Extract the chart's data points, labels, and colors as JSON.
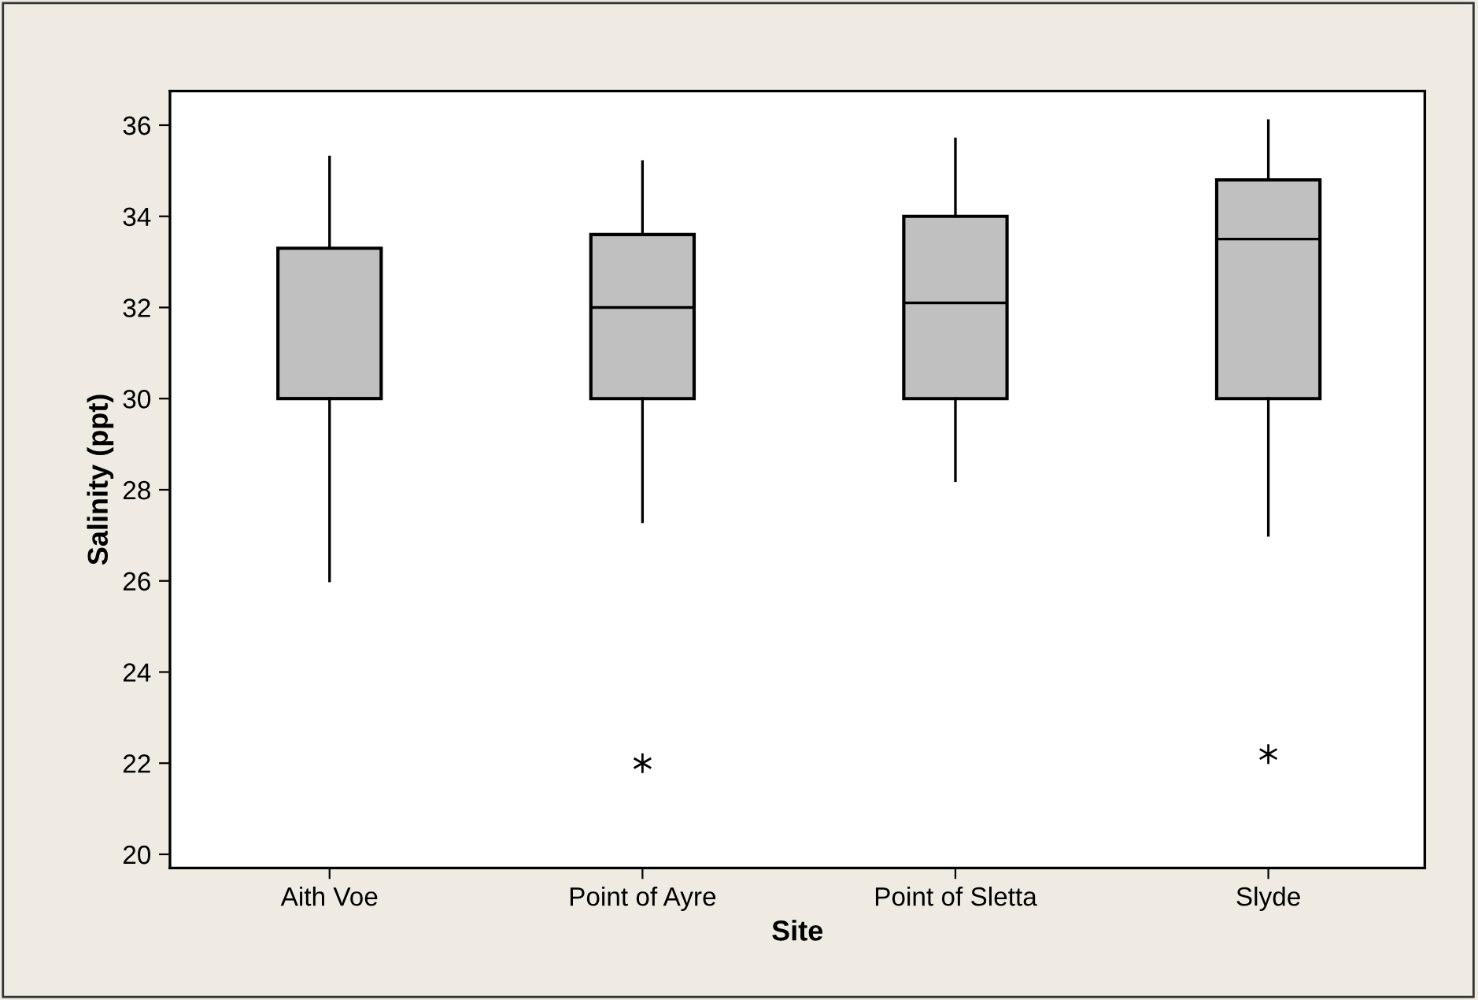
{
  "chart_data": {
    "type": "box",
    "xlabel": "Site",
    "ylabel": "Salinity (ppt)",
    "categories": [
      "Aith Voe",
      "Point of Ayre",
      "Point of Sletta",
      "Slyde"
    ],
    "boxes": [
      {
        "low": 26.0,
        "q1": 30.0,
        "median": 30.0,
        "q3": 33.3,
        "high": 35.3
      },
      {
        "low": 27.3,
        "q1": 30.0,
        "median": 32.0,
        "q3": 33.6,
        "high": 35.2,
        "outliers": [
          22.0
        ]
      },
      {
        "low": 28.2,
        "q1": 30.0,
        "median": 32.1,
        "q3": 34.0,
        "high": 35.7
      },
      {
        "low": 27.0,
        "q1": 30.0,
        "median": 33.5,
        "q3": 34.8,
        "high": 36.1,
        "outliers": [
          22.2
        ]
      }
    ],
    "color": "#c0c0c0",
    "ylim": [
      19.7,
      36.75
    ],
    "yticks": [
      20,
      22,
      24,
      26,
      28,
      30,
      32,
      34,
      36
    ],
    "grid": false
  }
}
